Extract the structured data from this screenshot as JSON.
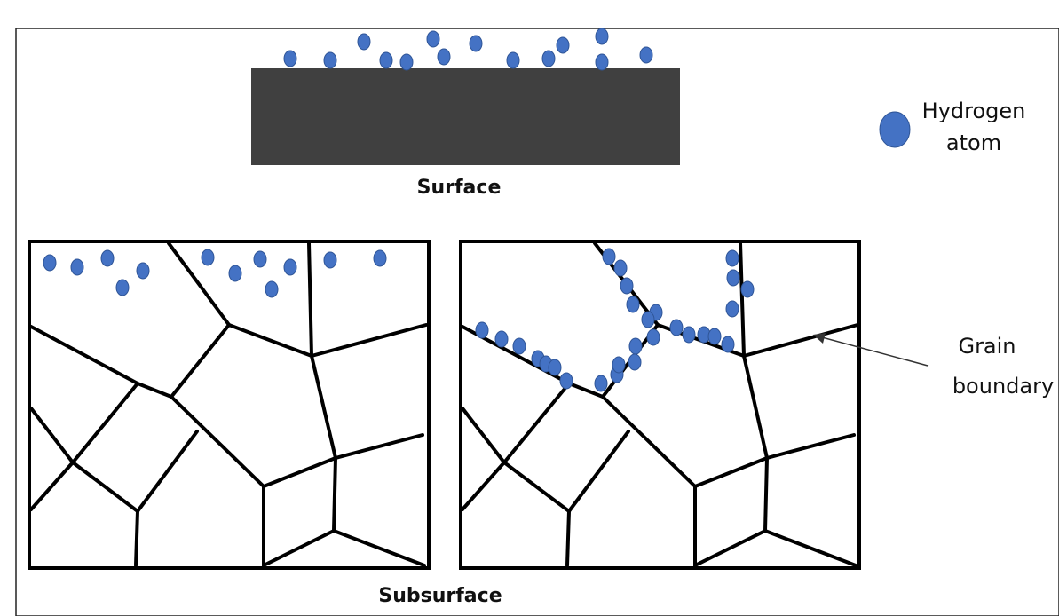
{
  "labels": {
    "surface": "Surface",
    "subsurface": "Subsurface",
    "legend_line1": "Hydrogen",
    "legend_line2": "atom",
    "grain_line1": "Grain",
    "grain_line2": "boundary"
  },
  "colors": {
    "atom_fill": "#4472C4",
    "atom_stroke": "#2F5597",
    "surface_block": "#404040",
    "frame_border": "#000000",
    "background": "#ffffff"
  }
}
